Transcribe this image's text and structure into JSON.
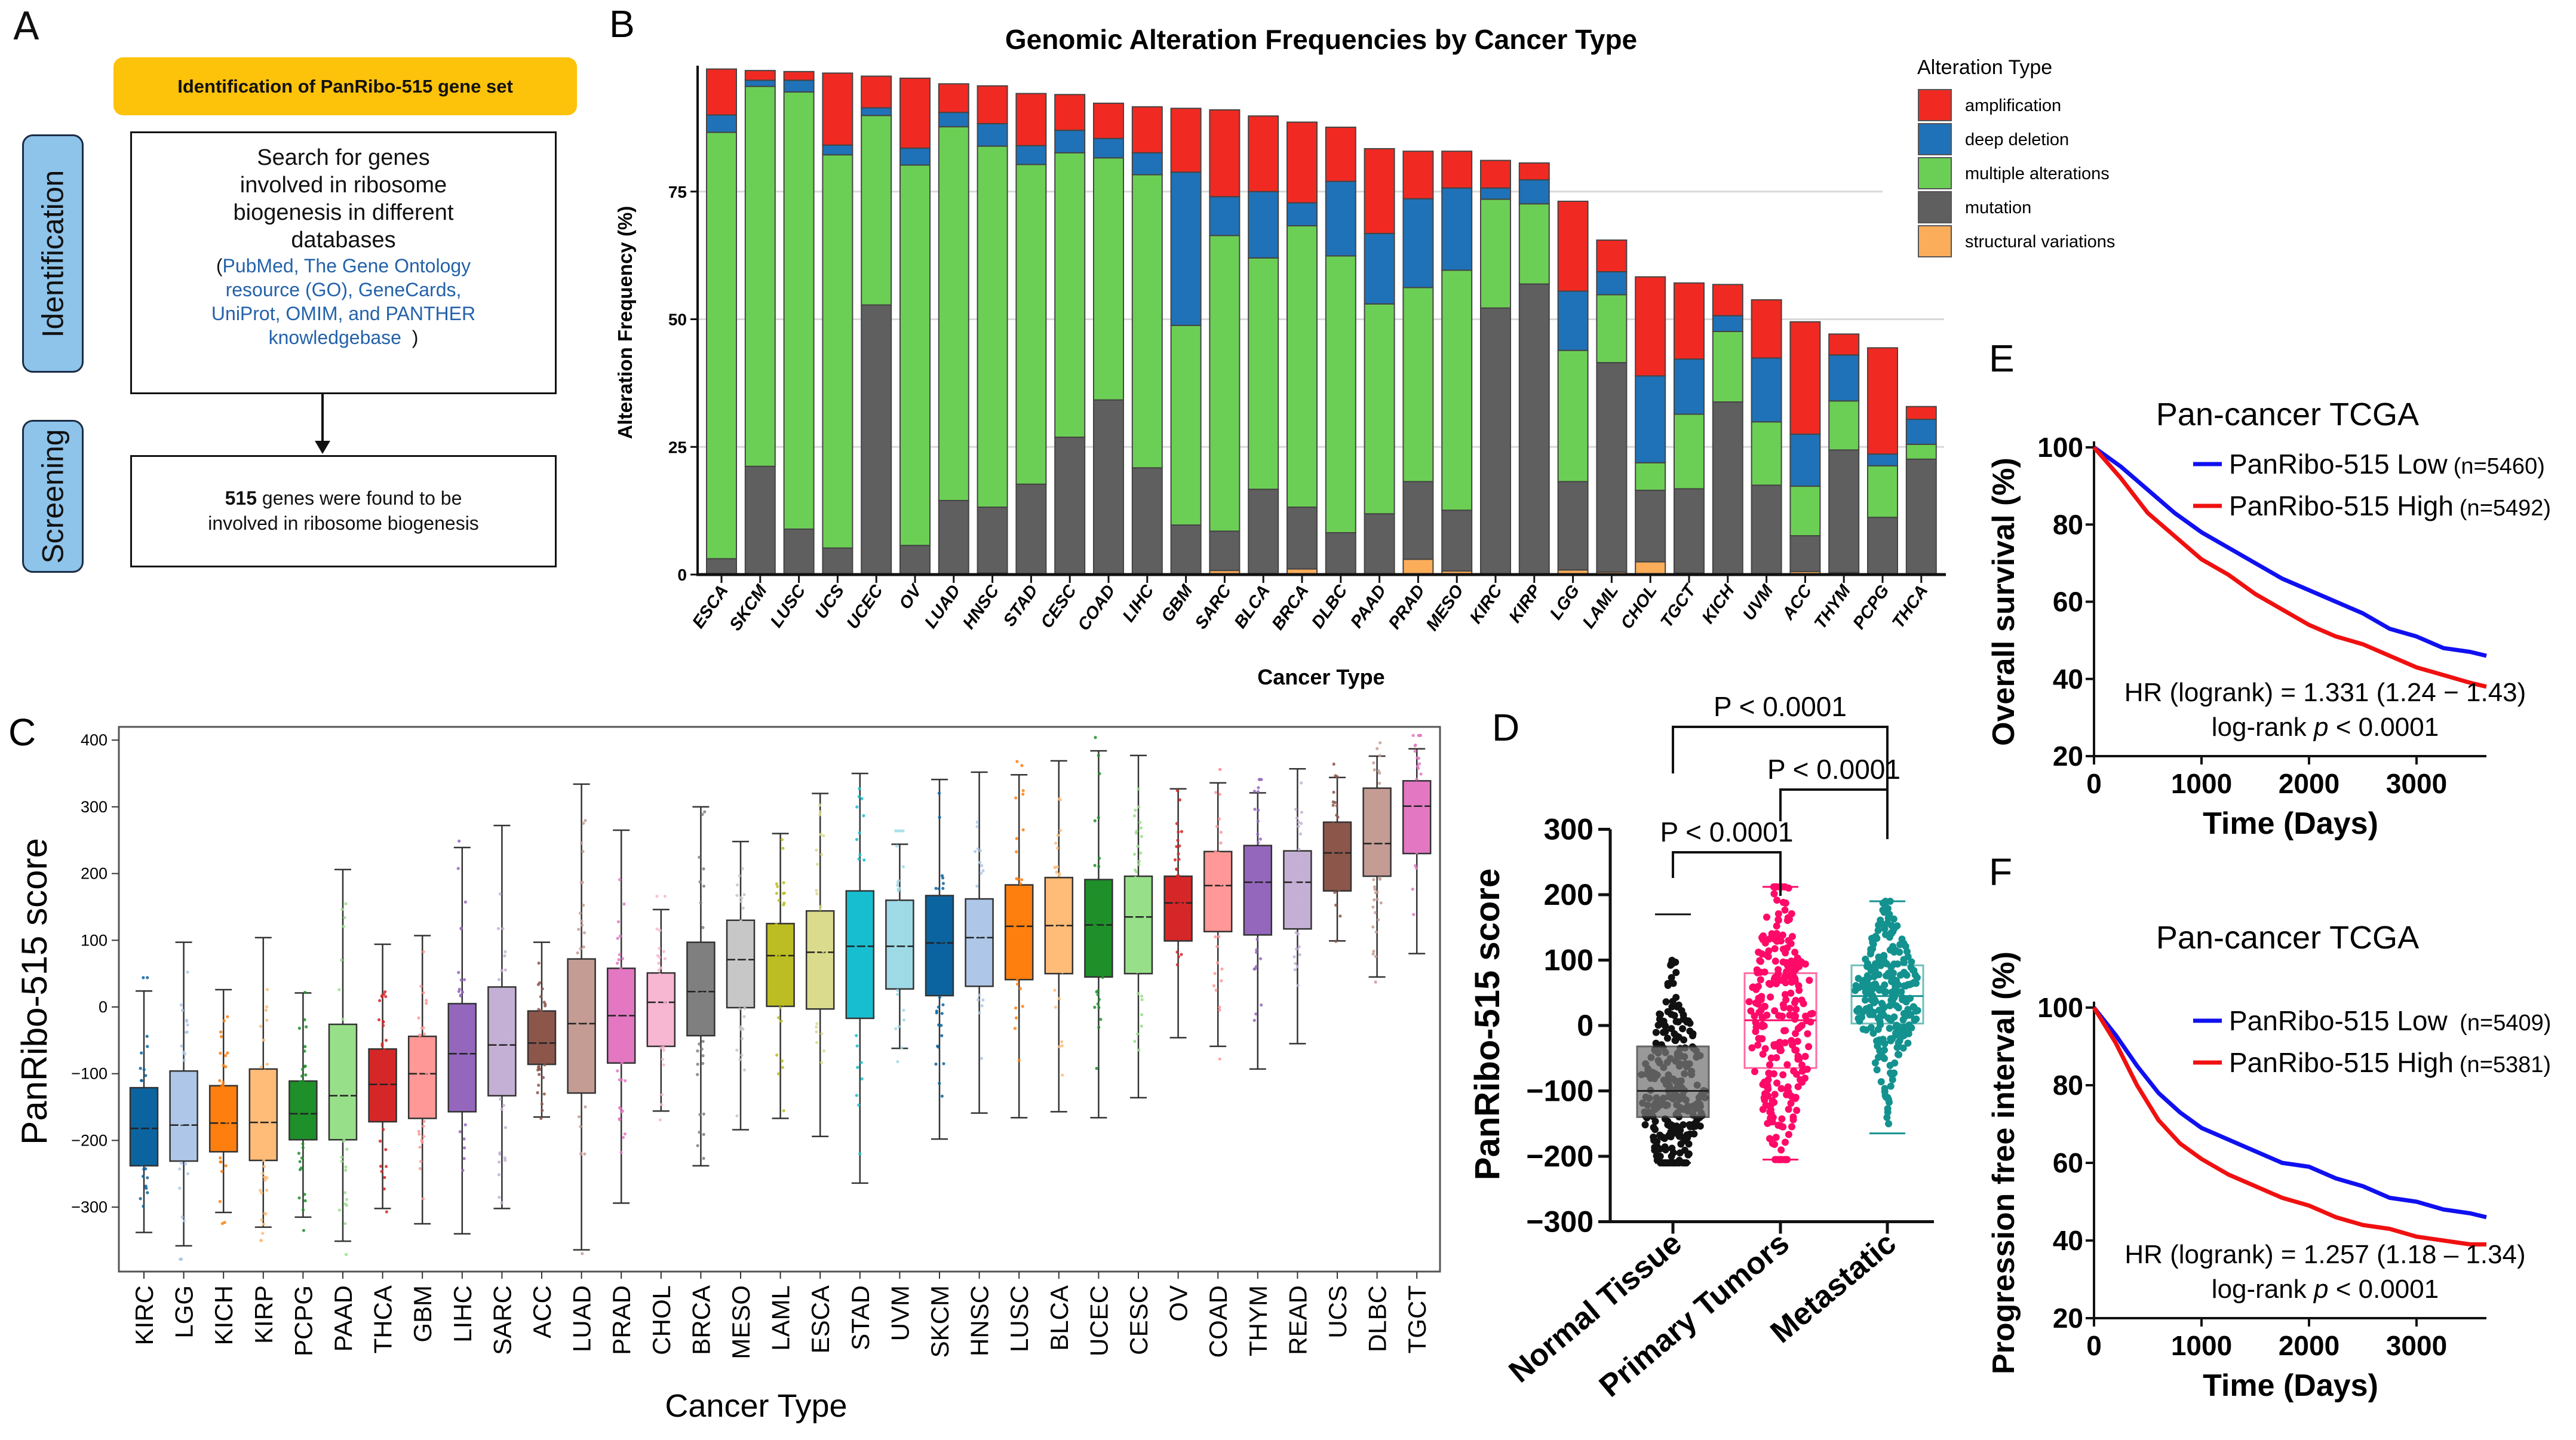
{
  "panel_labels": {
    "A": "A",
    "B": "B",
    "C": "C",
    "D": "D",
    "E": "E",
    "F": "F"
  },
  "panel_a": {
    "header": "Identification of PanRibo-515 gene set",
    "side_identification": "Identification",
    "side_screening": "Screening",
    "search_lines": [
      "Search   for genes",
      "involved in ribosome",
      "biogenesis in different",
      "databases"
    ],
    "paren_open": "(",
    "sources_lines": [
      "PubMed, The Gene Ontology",
      "resource (GO), GeneCards,",
      "UniProt, OMIM,  and  PANTHER",
      "knowledgebase"
    ],
    "paren_close": ")",
    "result_count": "515",
    "result_text_1": " genes were  found  to be",
    "result_text_2": "involved  in ribosome biogenesis",
    "colors": {
      "header_bg": "#fdc20a",
      "side_bg": "#8ec3ea",
      "sources_text": "#2462aa"
    }
  },
  "chart_data": [
    {
      "type": "bar",
      "stacked": true,
      "title": "Genomic Alteration Frequencies by Cancer Type",
      "xlabel": "Cancer Type",
      "ylabel": "Alteration Frequency (%)",
      "ylim": [
        0,
        100
      ],
      "yticks": [
        "0",
        "25",
        "50",
        "75"
      ],
      "grid": true,
      "legend_title": "Alteration Type",
      "legend_position": "top-right",
      "categories": [
        "ESCA",
        "SKCM",
        "LUSC",
        "UCS",
        "UCEC",
        "OV",
        "LUAD",
        "HNSC",
        "STAD",
        "CESC",
        "COAD",
        "LIHC",
        "GBM",
        "SARC",
        "BLCA",
        "BRCA",
        "DLBC",
        "PAAD",
        "PRAD",
        "MESO",
        "KIRC",
        "KIRP",
        "LGG",
        "LAML",
        "CHOL",
        "TGCT",
        "KICH",
        "UVM",
        "ACC",
        "THYM",
        "PCPG",
        "THCA"
      ],
      "series": [
        {
          "name": "structural variations",
          "color": "#fbad5a",
          "values": [
            0,
            0,
            0,
            0,
            0,
            0,
            0,
            0.3,
            0,
            0,
            0,
            0,
            0,
            0.8,
            0,
            1.1,
            0,
            0,
            3,
            0.7,
            0,
            0,
            0.9,
            0.5,
            2.5,
            0.3,
            0,
            0,
            0.6,
            0.4,
            0,
            0
          ]
        },
        {
          "name": "mutation",
          "color": "#5f5f5f",
          "values": [
            3.1,
            21.2,
            8.9,
            5.2,
            52.8,
            5.7,
            14.5,
            12.9,
            17.7,
            26.9,
            34.2,
            20.9,
            9.7,
            7.7,
            16.7,
            12.1,
            8.2,
            11.9,
            15.2,
            11.9,
            52.2,
            56.9,
            17.3,
            41,
            14,
            16.5,
            33.8,
            17.5,
            7,
            24,
            11.2,
            22.6
          ]
        },
        {
          "name": "multiple alterations",
          "color": "#6ccf55",
          "values": [
            83.5,
            74.4,
            85.6,
            77,
            37.1,
            74.5,
            73.2,
            70.7,
            62.6,
            55.7,
            47.4,
            57.4,
            39.1,
            57.9,
            45.3,
            55.1,
            54.2,
            41.1,
            38,
            47,
            21.3,
            15.7,
            25.7,
            13.3,
            5.4,
            14.6,
            13.8,
            12.4,
            9.7,
            9.6,
            10.1,
            2.9
          ]
        },
        {
          "name": "deep deletion",
          "color": "#1f72b8",
          "values": [
            3.4,
            1.2,
            2.3,
            1.9,
            1.5,
            3.3,
            2.8,
            4.4,
            3.7,
            4.4,
            3.8,
            4.3,
            30,
            7.6,
            13,
            4.5,
            14.6,
            13.8,
            17.4,
            16.1,
            2.2,
            4.7,
            11.6,
            4.5,
            17,
            10.8,
            3.1,
            12.5,
            10.2,
            9,
            2.3,
            4.9
          ]
        },
        {
          "name": "amplification",
          "color": "#f02a22",
          "values": [
            9,
            1.9,
            1.7,
            14.1,
            6.2,
            13.7,
            5.6,
            7.4,
            10.2,
            7,
            6.9,
            9,
            12.5,
            17,
            14.8,
            15.8,
            10.6,
            16.6,
            9.3,
            7.2,
            5.4,
            3.3,
            17.6,
            6.2,
            19.4,
            14.9,
            6.1,
            11.4,
            22,
            4.1,
            20.8,
            2.5
          ]
        }
      ],
      "legend_order": [
        "amplification",
        "deep deletion",
        "multiple alterations",
        "mutation",
        "structural variations"
      ]
    },
    {
      "type": "box",
      "xlabel": "Cancer Type",
      "ylabel": "PanRibo-515 score",
      "ylim": [
        -400,
        420
      ],
      "yticks": [
        "400",
        "300",
        "200",
        "100",
        "0",
        "−100",
        "−200",
        "−300"
      ],
      "ytick_values": [
        400,
        300,
        200,
        100,
        0,
        -100,
        -200,
        -300
      ],
      "categories": [
        "KIRC",
        "LGG",
        "KICH",
        "KIRP",
        "PCPG",
        "PAAD",
        "THCA",
        "GBM",
        "LIHC",
        "SARC",
        "ACC",
        "LUAD",
        "PRAD",
        "CHOL",
        "BRCA",
        "MESO",
        "LAML",
        "ESCA",
        "STAD",
        "UVM",
        "SKCM",
        "HNSC",
        "LUSC",
        "BLCA",
        "UCEC",
        "CESC",
        "OV",
        "COAD",
        "THYM",
        "READ",
        "UCS",
        "DLBC",
        "TGCT"
      ],
      "stats_order": [
        "whisker_low",
        "q1",
        "median",
        "q3",
        "whisker_high"
      ],
      "stats": [
        [
          -338,
          -238,
          -182,
          -121,
          24
        ],
        [
          -358,
          -231,
          -177,
          -96,
          97
        ],
        [
          -308,
          -217,
          -174,
          -118,
          26
        ],
        [
          -330,
          -230,
          -173,
          -93,
          104
        ],
        [
          -315,
          -199,
          -160,
          -111,
          21
        ],
        [
          -351,
          -199,
          -133,
          -26,
          206
        ],
        [
          -302,
          -172,
          -116,
          -63,
          94
        ],
        [
          -325,
          -167,
          -100,
          -44,
          107
        ],
        [
          -340,
          -157,
          -70,
          5,
          239
        ],
        [
          -302,
          -133,
          -57,
          30,
          272
        ],
        [
          -165,
          -86,
          -54,
          -6,
          97
        ],
        [
          -364,
          -129,
          -25,
          72,
          334
        ],
        [
          -294,
          -84,
          -13,
          58,
          265
        ],
        [
          -156,
          -59,
          7,
          51,
          146
        ],
        [
          -238,
          -43,
          23,
          97,
          300
        ],
        [
          -184,
          -1,
          71,
          130,
          248
        ],
        [
          -167,
          1,
          77,
          125,
          260
        ],
        [
          -194,
          -3,
          82,
          144,
          320
        ],
        [
          -264,
          -17,
          91,
          174,
          350
        ],
        [
          -62,
          27,
          91,
          160,
          244
        ],
        [
          -198,
          17,
          96,
          167,
          341
        ],
        [
          -159,
          31,
          104,
          162,
          352
        ],
        [
          -166,
          41,
          121,
          183,
          348
        ],
        [
          -157,
          50,
          122,
          194,
          369
        ],
        [
          -166,
          45,
          123,
          191,
          384
        ],
        [
          -136,
          50,
          135,
          196,
          377
        ],
        [
          -46,
          99,
          156,
          196,
          327
        ],
        [
          -59,
          113,
          182,
          233,
          336
        ],
        [
          -93,
          108,
          187,
          242,
          321
        ],
        [
          -55,
          117,
          187,
          234,
          357
        ],
        [
          99,
          174,
          231,
          277,
          344
        ],
        [
          45,
          196,
          245,
          328,
          376
        ],
        [
          80,
          230,
          301,
          339,
          387
        ]
      ],
      "colors": [
        "#0b64a0",
        "#aec7e8",
        "#ff7f0e",
        "#ffbb78",
        "#1f8f2a",
        "#98df8a",
        "#d62728",
        "#ff9896",
        "#9467bd",
        "#c5b0d5",
        "#8c564b",
        "#c49c94",
        "#e377c2",
        "#f7b6d2",
        "#7f7f7f",
        "#c7c7c7",
        "#bcbd22",
        "#dbdb8d",
        "#17becf",
        "#9edae5",
        "#0b64a0",
        "#aec7e8",
        "#ff7f0e",
        "#ffbb78",
        "#1f8f2a",
        "#98df8a",
        "#d62728",
        "#ff9896",
        "#9467bd",
        "#c5b0d5",
        "#8c564b",
        "#c49c94",
        "#e377c2"
      ]
    },
    {
      "type": "box",
      "ylabel": "PanRibo-515 score",
      "ylim": [
        -300,
        300
      ],
      "yticks": [
        "300",
        "200",
        "100",
        "0",
        "−100",
        "−200",
        "−300"
      ],
      "ytick_values": [
        300,
        200,
        100,
        0,
        -100,
        -200,
        -300
      ],
      "categories": [
        "Normal Tissue",
        "Primary Tumors",
        "Metastatic"
      ],
      "stats_order": [
        "whisker_low",
        "q1",
        "median",
        "q3",
        "whisker_high"
      ],
      "stats": [
        [
          -210,
          -140,
          -100,
          -32,
          170
        ],
        [
          -205,
          -65,
          8,
          80,
          212
        ],
        [
          -165,
          3,
          45,
          92,
          190
        ]
      ],
      "colors": [
        "#111111",
        "#ff0a68",
        "#13928f"
      ],
      "comparisons": [
        {
          "groups": [
            "Normal Tissue",
            "Metastatic"
          ],
          "label": "P < 0.0001"
        },
        {
          "groups": [
            "Primary Tumors",
            "Metastatic"
          ],
          "label": "P < 0.0001"
        },
        {
          "groups": [
            "Normal Tissue",
            "Primary Tumors"
          ],
          "label": "P < 0.0001"
        }
      ]
    },
    {
      "type": "line",
      "title": "Pan-cancer TCGA",
      "xlabel": "Time (Days)",
      "ylabel": "Overall survival (%)",
      "xlim": [
        0,
        3800
      ],
      "ylim": [
        20,
        100
      ],
      "xticks": [
        "0",
        "1000",
        "2000",
        "3000"
      ],
      "xtick_values": [
        0,
        1000,
        2000,
        3000
      ],
      "yticks": [
        "100",
        "80",
        "60",
        "40",
        "20"
      ],
      "ytick_values": [
        100,
        80,
        60,
        40,
        20
      ],
      "legend_position": "top-right",
      "series": [
        {
          "name": "PanRibo-515 Low",
          "n": "(n=5460)",
          "color": "#1010f0",
          "x": [
            0,
            250,
            500,
            750,
            1000,
            1250,
            1500,
            1750,
            2000,
            2250,
            2500,
            2750,
            3000,
            3250,
            3500,
            3650
          ],
          "y": [
            100,
            95,
            89,
            83,
            78,
            74,
            70,
            66,
            63,
            60,
            57,
            53,
            51,
            48,
            47,
            46
          ]
        },
        {
          "name": "PanRibo-515 High",
          "n": "(n=5492)",
          "color": "#f01010",
          "x": [
            0,
            250,
            500,
            750,
            1000,
            1250,
            1500,
            1750,
            2000,
            2250,
            2500,
            2750,
            3000,
            3250,
            3500,
            3650
          ],
          "y": [
            100,
            92,
            83,
            77,
            71,
            67,
            62,
            58,
            54,
            51,
            49,
            46,
            43,
            41,
            39,
            38
          ]
        }
      ],
      "annotation_1": "HR (logrank) = 1.331 (1.24 − 1.43)",
      "annotation_2_prefix": "log-rank ",
      "annotation_2_p": "p",
      "annotation_2_suffix": " < 0.0001"
    },
    {
      "type": "line",
      "title": "Pan-cancer TCGA",
      "xlabel": "Time (Days)",
      "ylabel": "Progression free interval (%)",
      "xlim": [
        0,
        3800
      ],
      "ylim": [
        20,
        100
      ],
      "xticks": [
        "0",
        "1000",
        "2000",
        "3000"
      ],
      "xtick_values": [
        0,
        1000,
        2000,
        3000
      ],
      "yticks": [
        "100",
        "80",
        "60",
        "40",
        "20"
      ],
      "ytick_values": [
        100,
        80,
        60,
        40,
        20
      ],
      "legend_position": "top-right",
      "series": [
        {
          "name": "PanRibo-515 Low",
          "n": " (n=5409)",
          "color": "#1010f0",
          "x": [
            0,
            200,
            400,
            600,
            800,
            1000,
            1250,
            1500,
            1750,
            2000,
            2250,
            2500,
            2750,
            3000,
            3250,
            3500,
            3650
          ],
          "y": [
            100,
            93,
            85,
            78,
            73,
            69,
            66,
            63,
            60,
            59,
            56,
            54,
            51,
            50,
            48,
            47,
            46
          ]
        },
        {
          "name": "PanRibo-515 High",
          "n": "(n=5381)",
          "color": "#f01010",
          "x": [
            0,
            200,
            400,
            600,
            800,
            1000,
            1250,
            1500,
            1750,
            2000,
            2250,
            2500,
            2750,
            3000,
            3250,
            3500,
            3650
          ],
          "y": [
            100,
            91,
            80,
            71,
            65,
            61,
            57,
            54,
            51,
            49,
            46,
            44,
            43,
            41,
            40,
            39,
            39
          ]
        }
      ],
      "annotation_1": "HR (logrank) = 1.257  (1.18 – 1.34)",
      "annotation_2_prefix": "log-rank ",
      "annotation_2_p": "p",
      "annotation_2_suffix": " < 0.0001"
    }
  ]
}
